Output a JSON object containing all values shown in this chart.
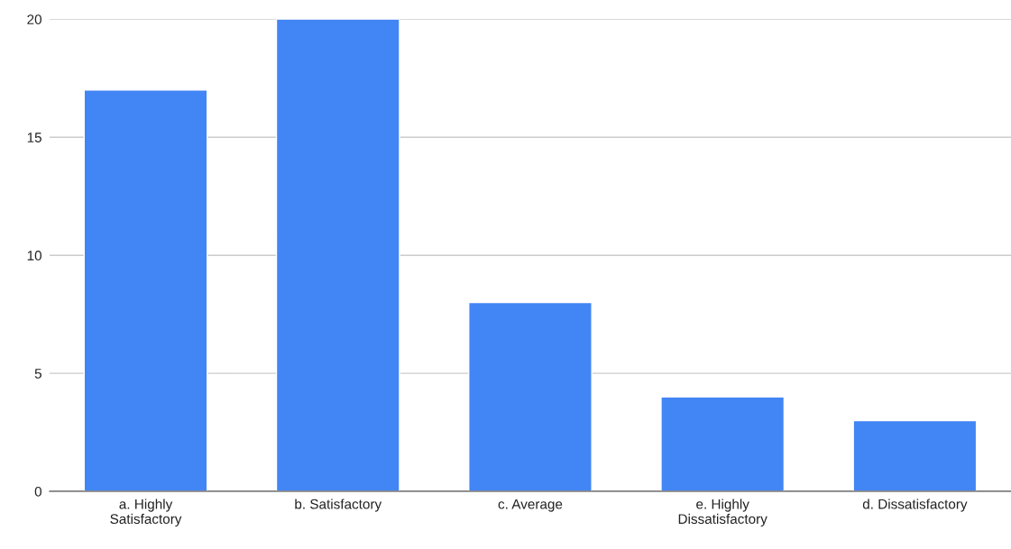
{
  "chart_data": {
    "type": "bar",
    "categories": [
      "a. Highly\nSatisfactory",
      "b. Satisfactory",
      "c. Average",
      "e. Highly\nDissatisfactory",
      "d. Dissatisfactory"
    ],
    "values": [
      17,
      20,
      8,
      4,
      3
    ],
    "color": "#4285f4",
    "ylim": [
      0,
      20
    ],
    "yticks": [
      0,
      5,
      10,
      15,
      20
    ],
    "grid": "y"
  }
}
